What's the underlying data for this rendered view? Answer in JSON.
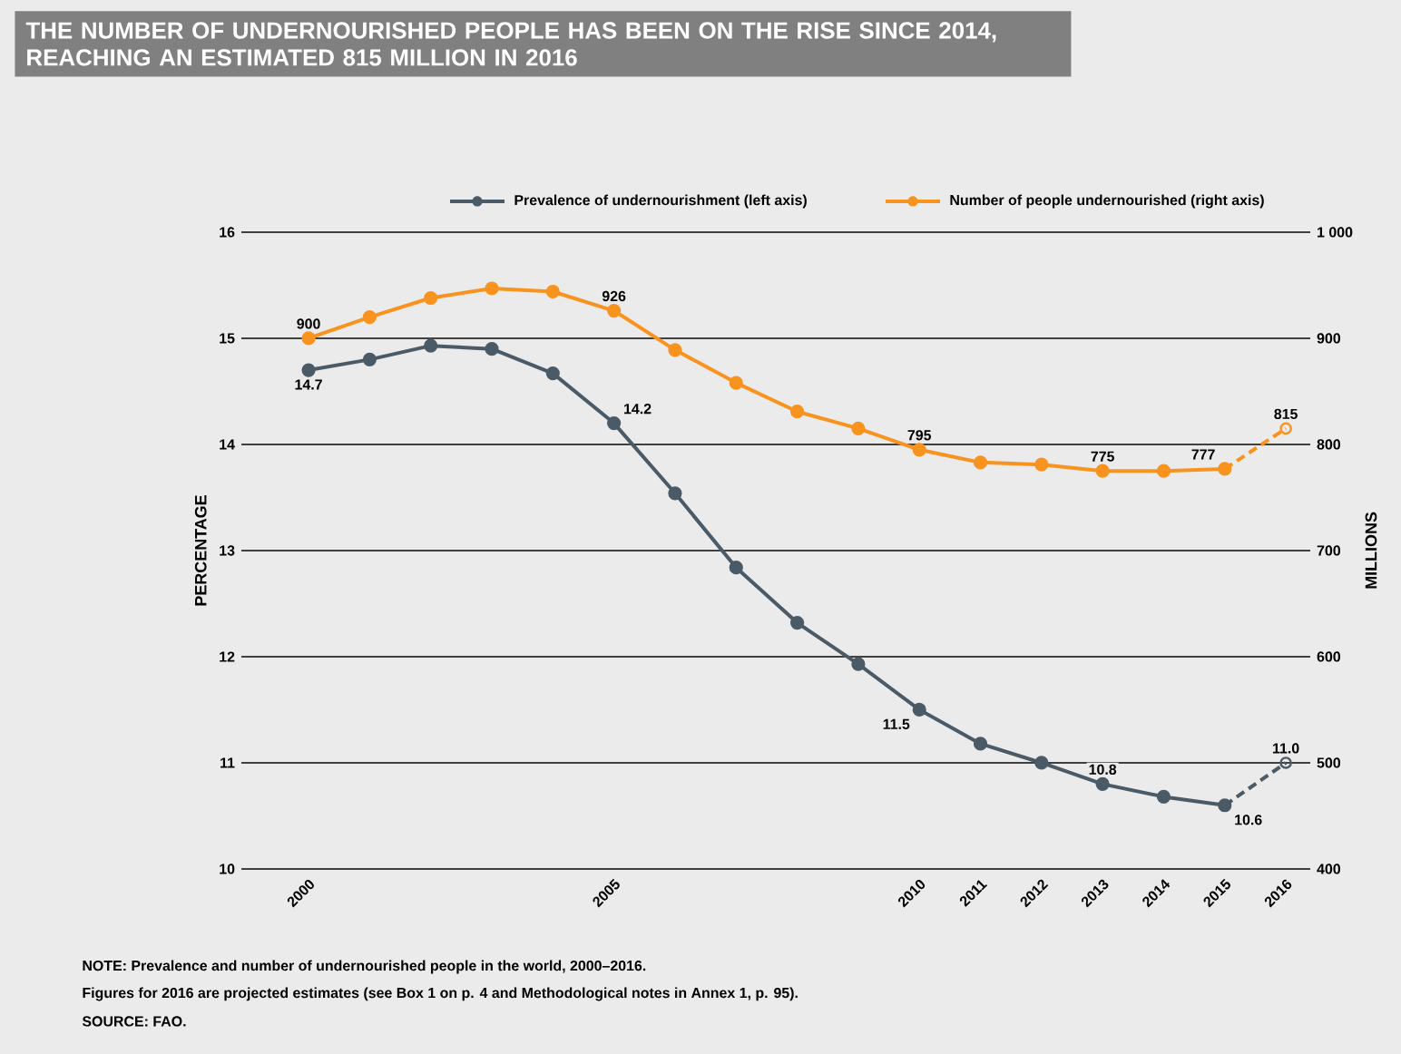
{
  "chart_data": {
    "type": "line",
    "title": "THE NUMBER OF UNDERNOURISHED PEOPLE HAS BEEN ON THE RISE SINCE 2014, REACHING AN ESTIMATED 815 MILLION IN 2016",
    "ylabel": "PERCENTAGE",
    "y2label": "MILLIONS",
    "annotations": [
      "NOTE: Prevalence and number of undernourished people in the world, 2000–2016.",
      "Figures for 2016 are projected estimates (see Box 1 on p. 4 and Methodological notes in Annex 1, p. 95).",
      "SOURCE: FAO."
    ],
    "series": [
      {
        "name": "Prevalence of undernourishment  (left axis)",
        "color": "#4a5a66",
        "x": [
          2000,
          2001,
          2002,
          2003,
          2004,
          2005,
          2006,
          2007,
          2008,
          2009,
          2010,
          2011,
          2012,
          2013,
          2014,
          2015
        ],
        "values": [
          14.7,
          14.8,
          14.93,
          14.9,
          14.67,
          14.2,
          13.54,
          12.84,
          12.32,
          11.93,
          11.5,
          11.18,
          11.0,
          10.8,
          10.68,
          10.6
        ],
        "value_labels": [
          "14.7",
          null,
          null,
          null,
          null,
          "14.2",
          null,
          null,
          null,
          null,
          "11.5",
          null,
          null,
          "10.8",
          null,
          "10.6"
        ]
      },
      {
        "name": "Number of people undernourished (right axis)",
        "color": "#f7931e",
        "axis": "y2",
        "x": [
          2000,
          2001,
          2002,
          2003,
          2004,
          2005,
          2006,
          2007,
          2008,
          2009,
          2010,
          2011,
          2012,
          2013,
          2014,
          2015
        ],
        "values": [
          900,
          920,
          938,
          947,
          944,
          926,
          889,
          858,
          831,
          815,
          795,
          783,
          781,
          775,
          775,
          777
        ],
        "value_labels": [
          "900",
          null,
          null,
          null,
          null,
          "926",
          null,
          null,
          null,
          null,
          "795",
          null,
          null,
          "775",
          null,
          "777"
        ]
      },
      {
        "color": "#4a5a66",
        "line_style": "dashed",
        "x": [
          2015,
          2016
        ],
        "values": [
          10.6,
          11.0
        ],
        "value_labels": [
          null,
          "11.0"
        ]
      },
      {
        "color": "#f7931e",
        "axis": "y2",
        "line_style": "dashed",
        "x": [
          2015,
          2016
        ],
        "values": [
          777,
          815
        ],
        "value_labels": [
          null,
          "815"
        ]
      }
    ],
    "xlim": [
      1998.9,
      2016.4
    ],
    "xticks": [
      2000,
      2005,
      2010,
      2011,
      2012,
      2013,
      2014,
      2015,
      2016
    ],
    "ylim": [
      10,
      16
    ],
    "yticks": [
      10,
      11,
      12,
      13,
      14,
      15,
      16
    ],
    "y2lim": [
      400,
      1000
    ],
    "y2ticks": [
      400,
      500,
      600,
      700,
      800,
      900,
      {
        "value": 1000,
        "label": "1 000"
      }
    ],
    "grid": "y",
    "legend": "top",
    "marker": "circle",
    "line_style": "solid"
  }
}
